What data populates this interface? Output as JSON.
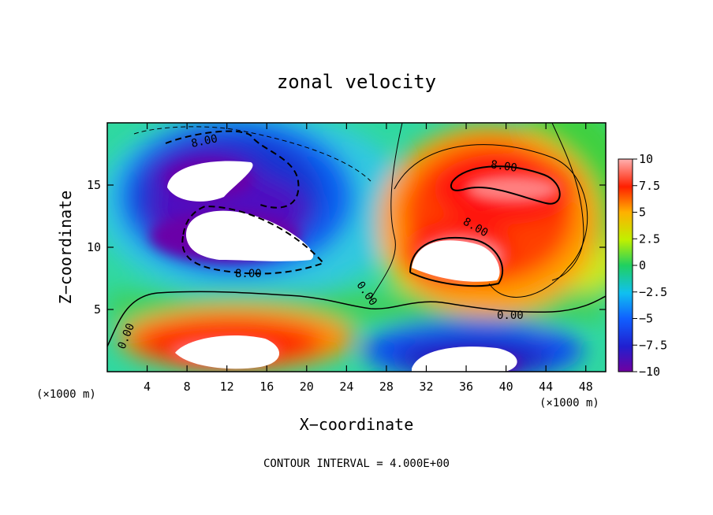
{
  "chart_data": {
    "type": "heatmap",
    "title": "zonal velocity",
    "xlabel": "X−coordinate",
    "ylabel": "Z−coordinate",
    "x_unit": "(×1000 m)",
    "y_unit": "(×1000 m)",
    "xlim": [
      0,
      50
    ],
    "ylim": [
      0,
      20
    ],
    "x_ticks": [
      "4",
      "8",
      "12",
      "16",
      "20",
      "24",
      "28",
      "32",
      "36",
      "40",
      "44",
      "48"
    ],
    "y_ticks": [
      "5",
      "10",
      "15"
    ],
    "colorbar": {
      "range": [
        -10,
        10
      ],
      "ticks": [
        "10",
        "7.5",
        "5",
        "2.5",
        "0",
        "−2.5",
        "−5",
        "−7.5",
        "−10"
      ]
    },
    "contour_labels": [
      "8.00",
      "8.00",
      "8.00",
      "8.00",
      "0.00",
      "0.00",
      "0.00"
    ],
    "contour_interval_text": "CONTOUR INTERVAL = 4.000E+00",
    "grid": false,
    "features": [
      {
        "name": "upper-left negative jet",
        "x": 12,
        "z": 13,
        "value": -12
      },
      {
        "name": "upper-right positive jet",
        "x": 36,
        "z": 12,
        "value": 10
      },
      {
        "name": "lower-left positive core",
        "x": 13,
        "z": 2,
        "value": 11
      },
      {
        "name": "lower-right negative core",
        "x": 36,
        "z": 1.5,
        "value": -11
      }
    ]
  }
}
